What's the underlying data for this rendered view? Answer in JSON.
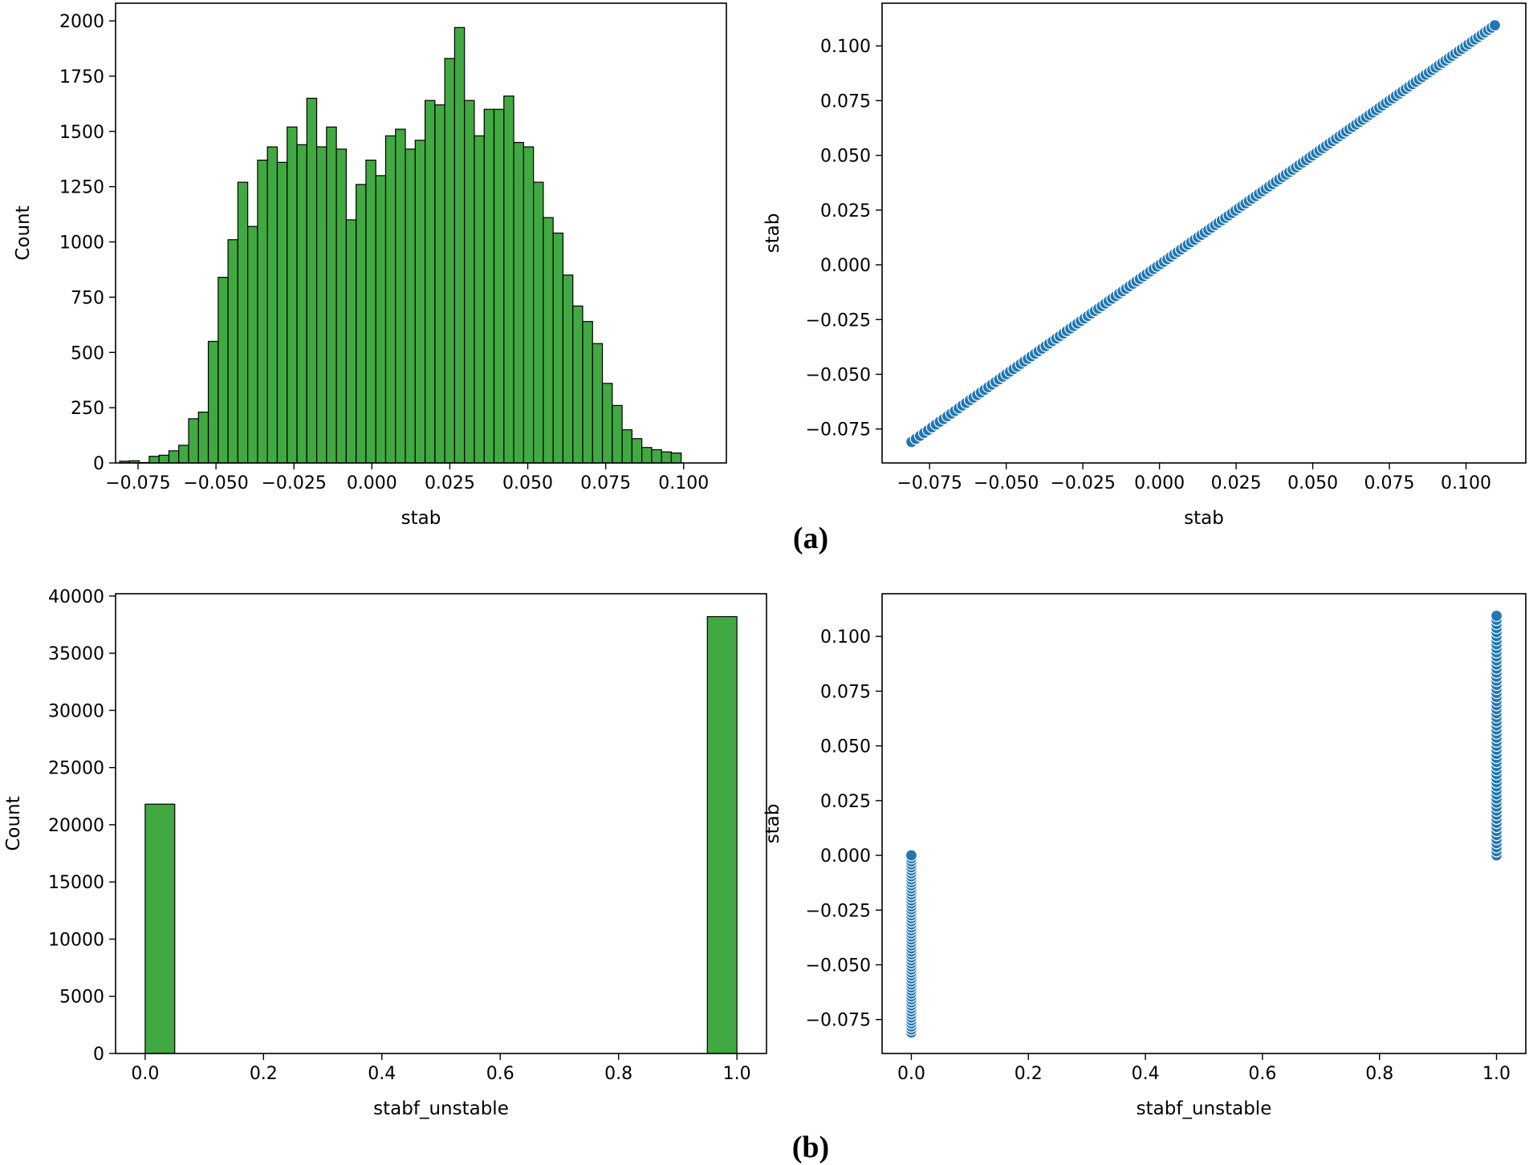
{
  "figure": {
    "panel_labels": [
      "(a)",
      "(b)"
    ]
  },
  "chart_data": [
    {
      "type": "bar",
      "panel": "(a) left",
      "xlabel": "stab",
      "ylabel": "Count",
      "xlim": [
        -0.0822,
        0.1137
      ],
      "ylim": [
        0,
        2080
      ],
      "xticks": [
        "−0.075",
        "−0.050",
        "−0.025",
        "0.000",
        "0.025",
        "0.050",
        "0.075",
        "0.100"
      ],
      "yticks": [
        "0",
        "250",
        "500",
        "750",
        "1000",
        "1250",
        "1500",
        "1750",
        "2000"
      ],
      "bin_start": -0.0809,
      "bin_width": 0.00316,
      "counts": [
        8,
        10,
        2,
        30,
        35,
        55,
        80,
        200,
        230,
        550,
        840,
        1010,
        1270,
        1070,
        1370,
        1430,
        1360,
        1520,
        1440,
        1650,
        1430,
        1520,
        1420,
        1100,
        1260,
        1370,
        1300,
        1480,
        1510,
        1420,
        1460,
        1640,
        1620,
        1830,
        1970,
        1640,
        1480,
        1600,
        1600,
        1660,
        1450,
        1430,
        1270,
        1110,
        1040,
        850,
        710,
        640,
        540,
        360,
        260,
        150,
        110,
        70,
        60,
        50,
        45
      ]
    },
    {
      "type": "scatter",
      "panel": "(a) right",
      "xlabel": "stab",
      "ylabel": "stab",
      "xlim": [
        -0.0905,
        0.1195
      ],
      "ylim": [
        -0.0905,
        0.1195
      ],
      "xticks": [
        "−0.075",
        "−0.050",
        "−0.025",
        "0.000",
        "0.025",
        "0.050",
        "0.075",
        "0.100"
      ],
      "yticks": [
        "−0.075",
        "−0.050",
        "−0.025",
        "0.000",
        "0.025",
        "0.050",
        "0.075",
        "0.100"
      ],
      "x_range": [
        -0.0809,
        0.1094
      ],
      "relation": "y = x"
    },
    {
      "type": "bar",
      "panel": "(b) left",
      "xlabel": "stabf_unstable",
      "ylabel": "Count",
      "xlim": [
        -0.05,
        1.05
      ],
      "ylim": [
        0,
        40200
      ],
      "xticks": [
        "0.0",
        "0.2",
        "0.4",
        "0.6",
        "0.8",
        "1.0"
      ],
      "yticks": [
        "0",
        "5000",
        "10000",
        "15000",
        "20000",
        "25000",
        "30000",
        "35000",
        "40000"
      ],
      "bins": [
        {
          "x0": 0.0,
          "x1": 0.05,
          "count": 21800
        },
        {
          "x0": 0.95,
          "x1": 1.0,
          "count": 38200
        }
      ]
    },
    {
      "type": "scatter",
      "panel": "(b) right",
      "xlabel": "stabf_unstable",
      "ylabel": "stab",
      "xlim": [
        -0.05,
        1.05
      ],
      "ylim": [
        -0.0905,
        0.1195
      ],
      "xticks": [
        "0.0",
        "0.2",
        "0.4",
        "0.6",
        "0.8",
        "1.0"
      ],
      "yticks": [
        "−0.075",
        "−0.050",
        "−0.025",
        "0.000",
        "0.025",
        "0.050",
        "0.075",
        "0.100"
      ],
      "groups": [
        {
          "x": 0,
          "y_range": [
            -0.0809,
            0.0
          ]
        },
        {
          "x": 1,
          "y_range": [
            0.0,
            0.1094
          ]
        }
      ]
    }
  ]
}
